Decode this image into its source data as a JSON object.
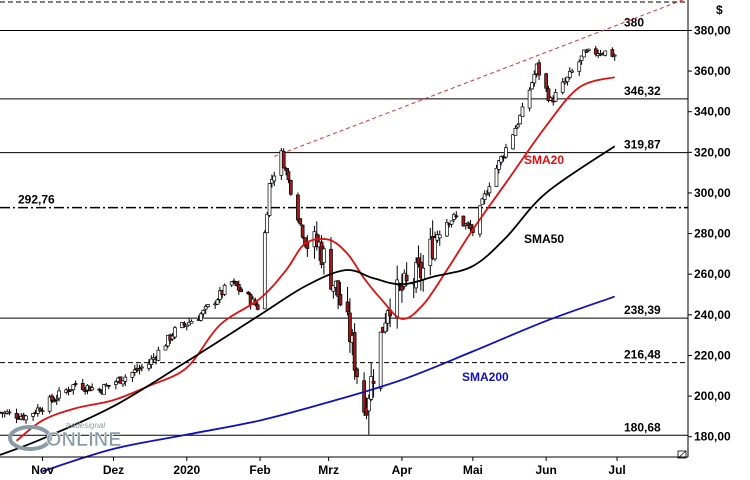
{
  "chart_data": {
    "type": "candlestick",
    "currency_label": "$",
    "y_range": [
      170,
      395
    ],
    "x_range": [
      "2019-10-14",
      "2020-07-31"
    ],
    "y_ticks": [
      180,
      200,
      220,
      240,
      260,
      280,
      300,
      320,
      340,
      360,
      380
    ],
    "y_tick_labels": [
      "180,00",
      "200,00",
      "220,00",
      "240,00",
      "260,00",
      "280,00",
      "300,00",
      "320,00",
      "340,00",
      "360,00",
      "380,00"
    ],
    "x_ticks": [
      {
        "date": "2019-11-01",
        "label": "Nov"
      },
      {
        "date": "2019-12-01",
        "label": "Dez"
      },
      {
        "date": "2020-01-01",
        "label": "2020"
      },
      {
        "date": "2020-02-01",
        "label": "Feb"
      },
      {
        "date": "2020-03-01",
        "label": "Mrz"
      },
      {
        "date": "2020-04-01",
        "label": "Apr"
      },
      {
        "date": "2020-05-01",
        "label": "Mai"
      },
      {
        "date": "2020-06-01",
        "label": "Jun"
      },
      {
        "date": "2020-07-01",
        "label": "Jul"
      }
    ],
    "grid": false,
    "levels": [
      {
        "value": 394,
        "label": "",
        "style": "dashed"
      },
      {
        "value": 380,
        "label": "380",
        "style": "solid"
      },
      {
        "value": 346.32,
        "label": "346,32",
        "style": "solid"
      },
      {
        "value": 319.87,
        "label": "319,87",
        "style": "solid"
      },
      {
        "value": 292.76,
        "label": "292,76",
        "style": "dashdot"
      },
      {
        "value": 238.39,
        "label": "238,39",
        "style": "solid"
      },
      {
        "value": 216.48,
        "label": "216,48",
        "style": "dashed"
      },
      {
        "value": 180.68,
        "label": "180,68",
        "style": "solid"
      }
    ],
    "trendline": {
      "color": "#e03030",
      "points": [
        {
          "date": "2020-02-07",
          "value": 318
        },
        {
          "date": "2020-07-31",
          "value": 396
        }
      ]
    },
    "series": [
      {
        "name": "SMA20",
        "color": "#e01010",
        "points": [
          {
            "date": "2019-10-21",
            "value": 178
          },
          {
            "date": "2019-11-01",
            "value": 188
          },
          {
            "date": "2019-11-15",
            "value": 194
          },
          {
            "date": "2019-12-01",
            "value": 198
          },
          {
            "date": "2019-12-16",
            "value": 205
          },
          {
            "date": "2020-01-01",
            "value": 214
          },
          {
            "date": "2020-01-15",
            "value": 235
          },
          {
            "date": "2020-02-01",
            "value": 248
          },
          {
            "date": "2020-02-12",
            "value": 262
          },
          {
            "date": "2020-02-20",
            "value": 275
          },
          {
            "date": "2020-03-01",
            "value": 277
          },
          {
            "date": "2020-03-09",
            "value": 270
          },
          {
            "date": "2020-03-16",
            "value": 258
          },
          {
            "date": "2020-03-23",
            "value": 248
          },
          {
            "date": "2020-04-01",
            "value": 238
          },
          {
            "date": "2020-04-10",
            "value": 245
          },
          {
            "date": "2020-04-20",
            "value": 262
          },
          {
            "date": "2020-05-01",
            "value": 282
          },
          {
            "date": "2020-05-15",
            "value": 305
          },
          {
            "date": "2020-06-01",
            "value": 333
          },
          {
            "date": "2020-06-15",
            "value": 352
          },
          {
            "date": "2020-06-30",
            "value": 357
          }
        ]
      },
      {
        "name": "SMA50",
        "color": "#000000",
        "points": [
          {
            "date": "2019-10-14",
            "value": 171
          },
          {
            "date": "2019-11-01",
            "value": 179
          },
          {
            "date": "2019-12-01",
            "value": 195
          },
          {
            "date": "2020-01-01",
            "value": 217
          },
          {
            "date": "2020-02-01",
            "value": 240
          },
          {
            "date": "2020-02-20",
            "value": 254
          },
          {
            "date": "2020-03-08",
            "value": 262
          },
          {
            "date": "2020-03-20",
            "value": 258
          },
          {
            "date": "2020-04-01",
            "value": 255
          },
          {
            "date": "2020-04-15",
            "value": 259
          },
          {
            "date": "2020-05-01",
            "value": 264
          },
          {
            "date": "2020-05-15",
            "value": 278
          },
          {
            "date": "2020-06-01",
            "value": 300
          },
          {
            "date": "2020-06-30",
            "value": 323
          }
        ]
      },
      {
        "name": "SMA200",
        "color": "#1010c0",
        "points": [
          {
            "date": "2019-11-01",
            "value": 163
          },
          {
            "date": "2019-12-01",
            "value": 174
          },
          {
            "date": "2020-01-01",
            "value": 181
          },
          {
            "date": "2020-02-01",
            "value": 188
          },
          {
            "date": "2020-03-01",
            "value": 197
          },
          {
            "date": "2020-04-01",
            "value": 208
          },
          {
            "date": "2020-05-01",
            "value": 222
          },
          {
            "date": "2020-06-01",
            "value": 237
          },
          {
            "date": "2020-06-30",
            "value": 249
          }
        ]
      }
    ],
    "price_path": [
      {
        "date": "2019-10-14",
        "value": 192
      },
      {
        "date": "2019-10-25",
        "value": 190
      },
      {
        "date": "2019-11-05",
        "value": 198
      },
      {
        "date": "2019-11-15",
        "value": 206
      },
      {
        "date": "2019-11-25",
        "value": 203
      },
      {
        "date": "2019-12-05",
        "value": 209
      },
      {
        "date": "2019-12-16",
        "value": 216
      },
      {
        "date": "2019-12-27",
        "value": 232
      },
      {
        "date": "2020-01-08",
        "value": 241
      },
      {
        "date": "2020-01-20",
        "value": 256
      },
      {
        "date": "2020-01-31",
        "value": 244
      },
      {
        "date": "2020-02-05",
        "value": 304
      },
      {
        "date": "2020-02-10",
        "value": 319
      },
      {
        "date": "2020-02-20",
        "value": 276
      },
      {
        "date": "2020-02-26",
        "value": 274
      },
      {
        "date": "2020-03-05",
        "value": 250
      },
      {
        "date": "2020-03-10",
        "value": 230
      },
      {
        "date": "2020-03-16",
        "value": 194
      },
      {
        "date": "2020-03-20",
        "value": 212
      },
      {
        "date": "2020-03-26",
        "value": 246
      },
      {
        "date": "2020-04-03",
        "value": 254
      },
      {
        "date": "2020-04-10",
        "value": 262
      },
      {
        "date": "2020-04-17",
        "value": 285
      },
      {
        "date": "2020-04-24",
        "value": 288
      },
      {
        "date": "2020-05-01",
        "value": 281
      },
      {
        "date": "2020-05-08",
        "value": 305
      },
      {
        "date": "2020-05-15",
        "value": 322
      },
      {
        "date": "2020-05-22",
        "value": 340
      },
      {
        "date": "2020-05-28",
        "value": 362
      },
      {
        "date": "2020-06-03",
        "value": 345
      },
      {
        "date": "2020-06-10",
        "value": 356
      },
      {
        "date": "2020-06-17",
        "value": 368
      },
      {
        "date": "2020-06-24",
        "value": 370
      },
      {
        "date": "2020-06-30",
        "value": 368
      }
    ],
    "spikes": [
      {
        "date": "2020-03-18",
        "low": 181
      }
    ],
    "sma_labels": [
      {
        "name": "SMA20",
        "color": "#e01010"
      },
      {
        "name": "SMA50",
        "color": "#000000"
      },
      {
        "name": "SMA200",
        "color": "#1010c0"
      }
    ]
  },
  "watermark": {
    "brand": "tradesignal",
    "text": "ONLINE"
  }
}
